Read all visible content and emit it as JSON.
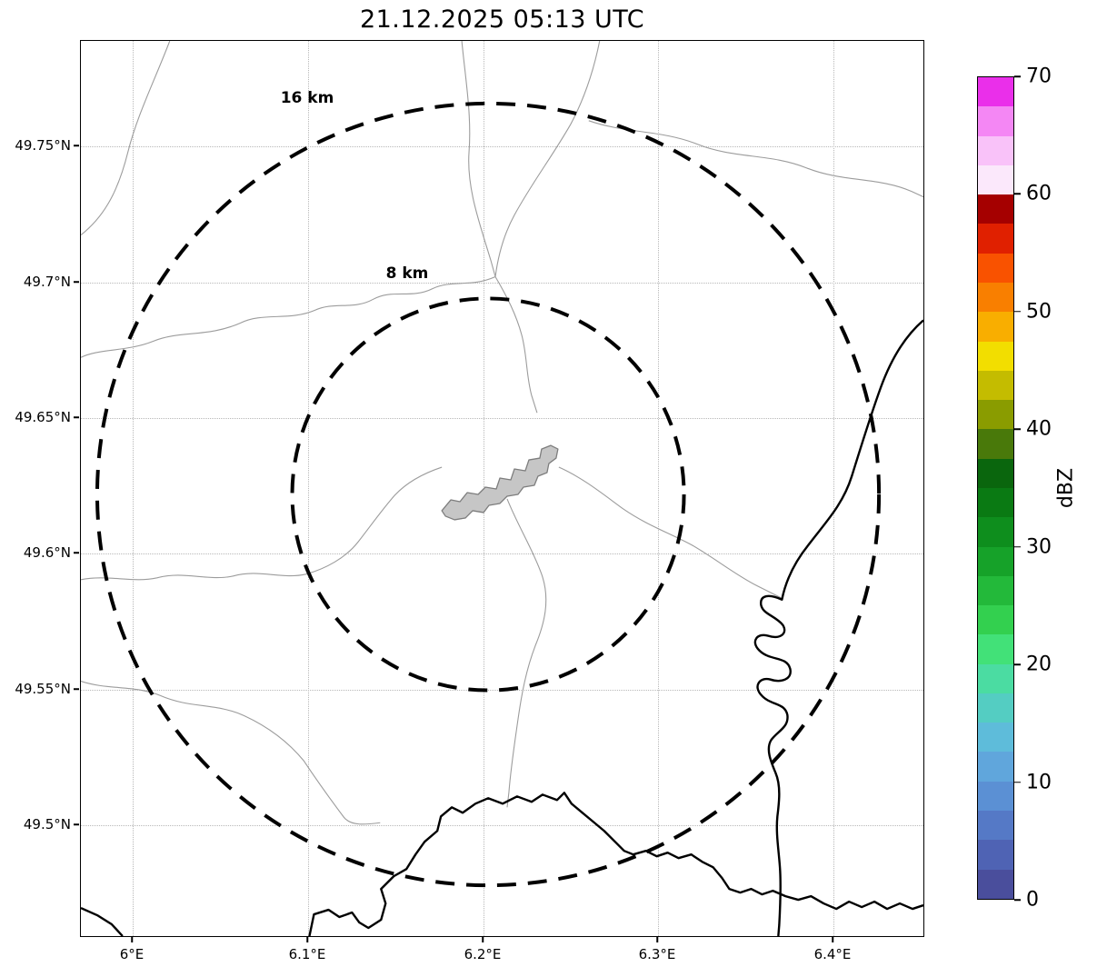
{
  "title": "21.12.2025 05:13 UTC",
  "map": {
    "range_rings": [
      {
        "label": "16 km",
        "radius_px": 431
      },
      {
        "label": "8 km",
        "radius_px": 216
      }
    ]
  },
  "axes": {
    "x_label_suffix": "E",
    "y_label_suffix": "N",
    "x_range": [
      "5.97°E",
      "6.45°E"
    ],
    "y_range": [
      "49.46°N",
      "49.79°N"
    ],
    "grid": true,
    "x_ticks": [
      {
        "label": "6°E",
        "pos": 57
      },
      {
        "label": "6.1°E",
        "pos": 250
      },
      {
        "label": "6.2°E",
        "pos": 443
      },
      {
        "label": "6.3°E",
        "pos": 635
      },
      {
        "label": "6.4°E",
        "pos": 828
      }
    ],
    "y_ticks": [
      {
        "label": "49.75°N",
        "pos": 116
      },
      {
        "label": "49.7°N",
        "pos": 266
      },
      {
        "label": "49.65°N",
        "pos": 415
      },
      {
        "label": "49.6°N",
        "pos": 564
      },
      {
        "label": "49.55°N",
        "pos": 714
      },
      {
        "label": "49.5°N",
        "pos": 863
      }
    ]
  },
  "colorbar": {
    "label": "dBZ",
    "min": 0,
    "max": 70,
    "tick_labels": [
      "0",
      "10",
      "20",
      "30",
      "40",
      "50",
      "60",
      "70"
    ],
    "colors_bottom_to_top": [
      "#4a4e9c",
      "#4f63b4",
      "#5579c6",
      "#5b90d4",
      "#60a6dc",
      "#5ebcda",
      "#54cdc2",
      "#4bdca2",
      "#42e178",
      "#33d04f",
      "#23b93a",
      "#16a229",
      "#0e8e1d",
      "#0a7a13",
      "#0a660d",
      "#49790a",
      "#8a9c00",
      "#c4bc00",
      "#f2de00",
      "#f9ae00",
      "#f97f00",
      "#f95200",
      "#e02000",
      "#a50000",
      "#fbe8fb",
      "#f9c2f9",
      "#f487f4",
      "#ea2fea"
    ]
  }
}
